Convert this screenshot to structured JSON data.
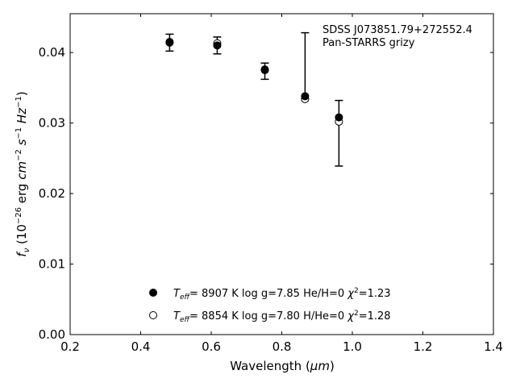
{
  "chart_data": {
    "type": "scatter",
    "title": "",
    "xlabel_main": "Wavelength (",
    "xlabel_unit": "μm",
    "xlabel_close": ")",
    "ylabel_parts": {
      "f": "f",
      "nu": "ν",
      "open": " (10",
      "exp1": "−26",
      "erg": " erg ",
      "cm": "cm",
      "exp2": "−2",
      "s": " s",
      "exp3": "−1",
      "hz": " Hz",
      "exp4": "−1",
      "close": ")"
    },
    "xlim": [
      0.2,
      1.4
    ],
    "ylim": [
      0.0,
      0.0455
    ],
    "xticks": [
      0.2,
      0.4,
      0.6,
      0.8,
      1.0,
      1.2,
      1.4
    ],
    "xtick_labels": [
      "0.2",
      "0.4",
      "0.6",
      "0.8",
      "1.0",
      "1.2",
      "1.4"
    ],
    "yticks": [
      0.0,
      0.01,
      0.02,
      0.03,
      0.04
    ],
    "ytick_labels": [
      "0.00",
      "0.01",
      "0.02",
      "0.03",
      "0.04"
    ],
    "grid": false,
    "annotation": [
      "SDSS J073851.79+272552.4",
      "Pan-STARRS grizy"
    ],
    "observed": {
      "x": [
        0.482,
        0.617,
        0.752,
        0.866,
        0.962
      ],
      "y": [
        0.0414,
        0.041,
        0.0374,
        0.0338,
        0.0308
      ],
      "yerr_low": [
        0.0402,
        0.0398,
        0.0362,
        0.0334,
        0.0239
      ],
      "yerr_high": [
        0.0426,
        0.0422,
        0.0385,
        0.0428,
        0.0332
      ]
    },
    "series": [
      {
        "marker": "filled-circle",
        "x": [
          0.482,
          0.617,
          0.752,
          0.866,
          0.962
        ],
        "y": [
          0.0414,
          0.041,
          0.0376,
          0.0338,
          0.0308
        ],
        "legend": {
          "teff_sym": "T",
          "teff_sub": "eff",
          "teff_val": "=  8907 K  log g=7.85  He/H=0  ",
          "chi": "χ",
          "chi_sup": "2",
          "chi_val": "=1.23"
        }
      },
      {
        "marker": "open-circle",
        "x": [
          0.482,
          0.617,
          0.752,
          0.866,
          0.962
        ],
        "y": [
          0.0415,
          0.0413,
          0.0375,
          0.0334,
          0.0302
        ],
        "legend": {
          "teff_sym": "T",
          "teff_sub": "eff",
          "teff_val": "=  8854 K  log g=7.80  H/He=0  ",
          "chi": "χ",
          "chi_sup": "2",
          "chi_val": "=1.28"
        }
      }
    ],
    "colors": {
      "axes": "#000000",
      "marker": "#000000",
      "background": "#ffffff"
    }
  }
}
